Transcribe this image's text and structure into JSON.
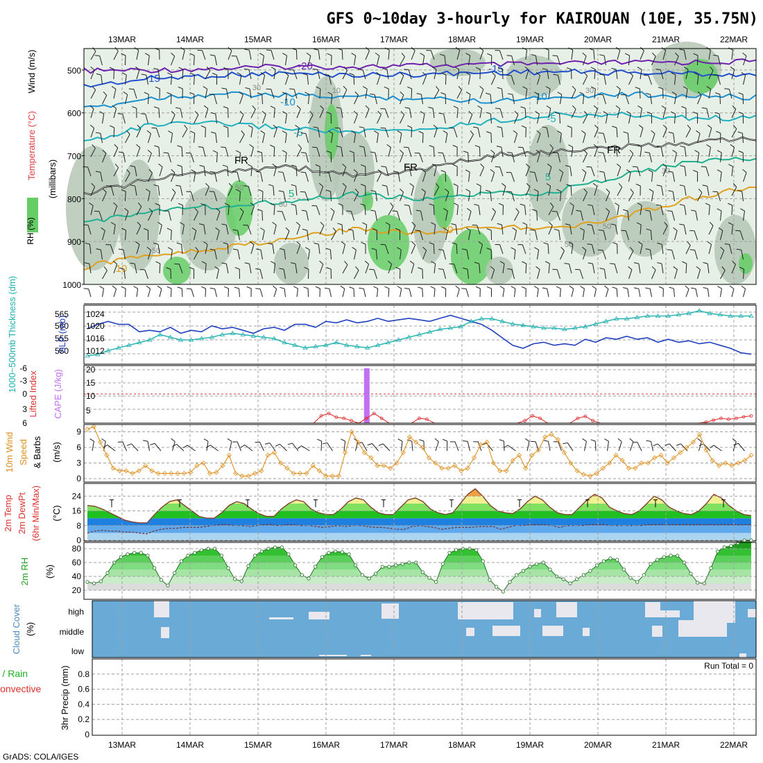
{
  "title": "GFS 0~10day 3-hourly for KAIROUAN (10E, 35.75N)",
  "credit": "GrADS: COLA/IGES",
  "run_total": "Run Total = 0",
  "colors": {
    "grid": "#a0a0a0",
    "rh_light": "#e6f0e6",
    "rh_mid": "#b5c7b5",
    "rh_green": "#66cc66",
    "slp": "#2040c0",
    "thickness": "#20b0b0",
    "lifted": "#e03030",
    "cape": "#c070f0",
    "wind": "#e09020",
    "cloud": "#6aaad6",
    "cloud_gap": "#e8e8ee"
  },
  "chart_data": [
    {
      "panel": "upper_air",
      "type": "contour",
      "ylabel_parts": [
        "RH (%)",
        "Temperature (°C)",
        "Wind (m/s)"
      ],
      "ylabel_units": "(millibars)",
      "x_ticks": [
        "13MAR",
        "14MAR",
        "15MAR",
        "16MAR",
        "17MAR",
        "18MAR",
        "19MAR",
        "20MAR",
        "21MAR",
        "22MAR"
      ],
      "y_ticks": [
        500,
        600,
        700,
        800,
        900,
        1000
      ],
      "ylim": [
        450,
        1000
      ],
      "isotherms": [
        {
          "label": "-20",
          "color": "#7020b0",
          "levels": [
            502,
            500,
            497,
            492,
            492,
            490,
            488,
            486,
            483,
            482,
            480
          ]
        },
        {
          "label": "-15",
          "color": "#2050d0",
          "levels": [
            538,
            520,
            512,
            508,
            512,
            510,
            506,
            504,
            506,
            508,
            512
          ]
        },
        {
          "label": "-10",
          "color": "#1c90d0",
          "levels": [
            592,
            565,
            556,
            560,
            562,
            566,
            572,
            562,
            556,
            560,
            564
          ]
        },
        {
          "label": "-5",
          "color": "#20b0c0",
          "levels": [
            668,
            628,
            625,
            635,
            645,
            640,
            620,
            604,
            605,
            612,
            612
          ]
        },
        {
          "label": "FR",
          "color": "#000000",
          "levels": [
            790,
            755,
            735,
            725,
            745,
            735,
            700,
            690,
            680,
            670,
            660
          ]
        },
        {
          "label": "5",
          "color": "#20b090",
          "levels": [
            860,
            825,
            818,
            805,
            790,
            800,
            790,
            785,
            745,
            715,
            705
          ]
        },
        {
          "label": "10",
          "color": "#e0a020",
          "levels": [
            960,
            930,
            915,
            895,
            870,
            880,
            865,
            870,
            845,
            800,
            770
          ]
        }
      ],
      "annotations": [
        "-20",
        "-15",
        "-10",
        "-5",
        "FR",
        "5",
        "10",
        "30",
        "50"
      ]
    },
    {
      "panel": "slp_thickness",
      "type": "line",
      "ylabel": "SLP (mb)",
      "ylabel2": "1000~500mb Thickness (dm)",
      "left_ticks": [
        "565",
        "560",
        "555",
        "550"
      ],
      "right_ticks": [
        "1024",
        "1020",
        "1016",
        "1012"
      ],
      "ylim": [
        1010,
        1026
      ],
      "series": [
        {
          "name": "SLP (mb)",
          "values": [
            1019.5,
            1021,
            1022,
            1021,
            1021,
            1018.5,
            1019,
            1018.5,
            1020,
            1018,
            1019,
            1018.5,
            1020.5,
            1019.5,
            1020,
            1019,
            1018,
            1019.5,
            1020,
            1019,
            1021,
            1021,
            1020,
            1022,
            1021.5,
            1022.5,
            1021.5,
            1022,
            1023,
            1022,
            1022.5,
            1023,
            1022.5,
            1022,
            1023,
            1024,
            1023,
            1022,
            1021,
            1019,
            1016.5,
            1014,
            1013,
            1014.5,
            1015,
            1014,
            1014.5,
            1014,
            1016,
            1015,
            1016.5,
            1016,
            1017,
            1016,
            1016.5,
            1015,
            1016,
            1015,
            1015.5,
            1014.5,
            1015,
            1014,
            1013,
            1011.5,
            1011
          ]
        },
        {
          "name": "Thickness (dm)",
          "values": [
            548,
            548.5,
            550,
            551,
            552,
            553,
            554,
            556,
            555,
            554,
            554,
            554.5,
            555,
            556,
            556.5,
            556,
            555.5,
            555,
            554.5,
            553,
            552,
            551,
            551.5,
            552,
            553,
            552,
            551.5,
            551,
            552,
            553,
            554,
            555,
            556,
            557,
            558,
            558.5,
            559,
            561,
            562,
            562,
            561,
            560,
            559.5,
            559,
            558.5,
            558.5,
            558,
            558.5,
            559,
            560,
            561,
            562,
            562,
            562.5,
            563,
            563,
            563,
            563.5,
            564,
            565,
            564,
            563.5,
            563,
            563,
            563
          ]
        }
      ]
    },
    {
      "panel": "cape_lifted",
      "type": "line",
      "ylabel": "CAPE (J/kg)",
      "ylabel2": "Lifted Index",
      "li_ticks": [
        "-6",
        "-3",
        "0",
        "3",
        "6"
      ],
      "cape_ticks": [
        "20",
        "15",
        "10",
        "5"
      ],
      "ylim": [
        0,
        20
      ],
      "series": [
        {
          "name": "Lifted Index",
          "values": [
            6,
            6,
            6,
            6,
            6,
            6,
            6,
            6,
            6,
            6,
            6,
            6,
            6,
            6,
            6,
            6,
            6,
            6,
            6,
            6,
            6,
            6,
            6,
            6,
            6,
            6,
            6,
            6,
            6,
            6,
            6,
            4.5,
            4,
            4.8,
            5,
            5.5,
            6,
            5,
            4,
            5,
            6,
            6,
            6,
            6,
            5,
            5.2,
            6,
            6,
            6,
            6,
            6,
            6,
            6,
            6,
            6,
            6,
            6,
            6,
            5.5,
            4.5,
            5,
            6,
            6,
            6,
            6,
            5,
            4.6,
            5.5,
            6,
            6,
            6,
            6,
            6,
            6,
            6,
            6,
            6,
            6,
            6,
            6,
            6,
            6,
            5.8,
            5.4,
            5,
            5.2,
            5,
            4.7,
            4.5
          ]
        },
        {
          "name": "CAPE (J/kg)",
          "bar_day_index": 3.6,
          "bar_value": 20
        }
      ]
    },
    {
      "panel": "wind10m",
      "type": "line",
      "ylabel": "10m Wind Speed (m/s) & Barbs",
      "y_ticks": [
        "9",
        "6",
        "3",
        "0"
      ],
      "ylim": [
        0,
        10
      ],
      "series": [
        {
          "name": "10m Wind Speed (m/s)",
          "values": [
            9.5,
            10,
            7,
            4.5,
            2,
            1.5,
            1.5,
            1,
            1.5,
            2.5,
            1.5,
            1,
            1,
            1,
            1,
            1,
            1.2,
            2.5,
            3,
            1,
            1.2,
            2.5,
            4.5,
            1,
            0.5,
            0.5,
            1,
            1.5,
            4.5,
            5,
            3,
            2,
            1,
            1,
            1,
            2.5,
            1.5,
            0.5,
            0.5,
            0.5,
            5,
            9,
            7,
            5,
            4,
            2.5,
            2.5,
            2,
            3,
            5,
            8,
            7,
            6,
            4,
            3,
            2,
            2,
            2.5,
            1.5,
            2,
            4,
            6.5,
            7,
            3,
            1.5,
            1.5,
            3.5,
            4.5,
            2,
            4.5,
            5.5,
            8,
            8.5,
            7.5,
            5,
            3,
            1.5,
            0.8,
            0.5,
            1,
            2,
            3,
            4.5,
            3.5,
            2,
            2,
            3,
            3,
            4,
            4.5,
            3,
            4,
            5,
            6,
            7,
            8.5,
            5.5,
            3.5,
            2.5,
            3,
            2.5,
            3,
            3.5,
            4.5
          ]
        }
      ]
    },
    {
      "panel": "temp2m",
      "type": "area",
      "ylabel": "2m Temp 2m DewPt (6hr Min/Max)",
      "ylabel_units": "(°C)",
      "y_ticks": [
        "24",
        "16",
        "8",
        "0"
      ],
      "ylim": [
        0,
        29
      ],
      "series": [
        {
          "name": "2m Temp",
          "values": [
            19,
            18.5,
            17,
            15,
            13,
            11,
            10,
            9.5,
            9.5,
            14,
            18,
            21,
            22,
            19,
            16,
            13,
            12,
            12,
            15,
            19,
            21,
            20,
            17,
            14.5,
            13,
            13,
            17,
            20,
            22,
            21,
            17,
            15,
            14,
            14,
            17,
            21,
            23,
            22,
            18,
            15,
            14,
            14,
            18,
            22,
            23,
            21,
            17,
            15,
            14,
            15,
            20,
            25,
            28,
            24,
            19,
            16,
            15,
            14.5,
            17,
            21,
            24,
            22,
            18,
            15,
            14,
            14,
            18,
            22,
            25,
            23,
            18,
            16,
            14.5,
            14,
            16,
            20,
            24,
            22,
            18,
            16,
            14.5,
            14,
            16,
            20,
            25,
            23,
            19,
            16,
            14,
            13.5
          ]
        },
        {
          "name": "2m DewPt",
          "values": [
            4,
            5,
            5.5,
            5,
            5,
            4.5,
            4.5,
            4,
            3.5,
            5,
            6,
            6.5,
            6.5,
            7,
            7,
            7,
            7.5,
            8,
            8.5,
            8.5,
            8,
            8,
            7.5,
            8,
            8.5,
            8.5,
            8,
            8.5,
            8.5,
            8,
            8,
            7.5,
            7,
            7.5,
            8,
            7.5,
            8,
            8,
            7.5,
            7,
            7,
            6.5,
            6,
            6,
            7.5,
            8,
            7.5,
            7,
            6,
            6.5,
            7,
            7,
            7,
            7.5,
            7.5,
            7.5,
            6,
            7,
            8,
            8,
            8.5,
            8.5,
            8.5,
            8,
            7,
            8,
            8,
            8,
            8.5,
            8.5,
            8.5,
            8,
            8,
            8,
            8,
            8,
            8.5,
            8.5,
            8.5,
            8.5,
            8.5,
            8.5,
            8.5,
            8.5,
            8.5,
            8.5,
            8.5,
            8.5,
            8.5,
            8.5,
            8.5
          ]
        }
      ]
    },
    {
      "panel": "rh2m",
      "type": "area",
      "ylabel": "2m RH",
      "ylabel_units": "(%)",
      "y_ticks": [
        "80",
        "60",
        "40",
        "20"
      ],
      "ylim": [
        10,
        90
      ],
      "series": [
        {
          "name": "2m RH",
          "values": [
            32,
            30,
            33,
            45,
            60,
            68,
            72,
            74,
            74,
            70,
            52,
            35,
            27,
            45,
            62,
            70,
            74,
            78,
            80,
            80,
            70,
            52,
            36,
            33,
            55,
            70,
            76,
            80,
            82,
            82,
            72,
            56,
            42,
            37,
            54,
            68,
            74,
            76,
            75,
            72,
            56,
            42,
            37,
            44,
            54,
            54,
            56,
            58,
            60,
            60,
            46,
            38,
            32,
            58,
            74,
            78,
            80,
            80,
            78,
            62,
            35,
            25,
            18,
            32,
            42,
            48,
            54,
            58,
            60,
            50,
            40,
            36,
            30,
            36,
            42,
            48,
            56,
            62,
            66,
            64,
            50,
            38,
            32,
            42,
            58,
            64,
            68,
            70,
            70,
            60,
            44,
            31,
            30,
            52,
            76,
            82,
            84,
            88,
            92,
            92
          ]
        }
      ]
    },
    {
      "panel": "cloud",
      "type": "heatmap",
      "ylabel": "Cloud Cover",
      "ylabel_units": "(%)",
      "rows": [
        "high",
        "middle",
        "low"
      ]
    },
    {
      "panel": "precip",
      "type": "bar",
      "ylabel": "3hr Precip (mm)",
      "ylabel2": "Total / Rain",
      "ylabel3": "Convective",
      "y_ticks": [
        "0.8",
        "0.6",
        "0.4",
        "0.2",
        "0"
      ],
      "ylim": [
        0,
        1
      ],
      "values": []
    }
  ]
}
